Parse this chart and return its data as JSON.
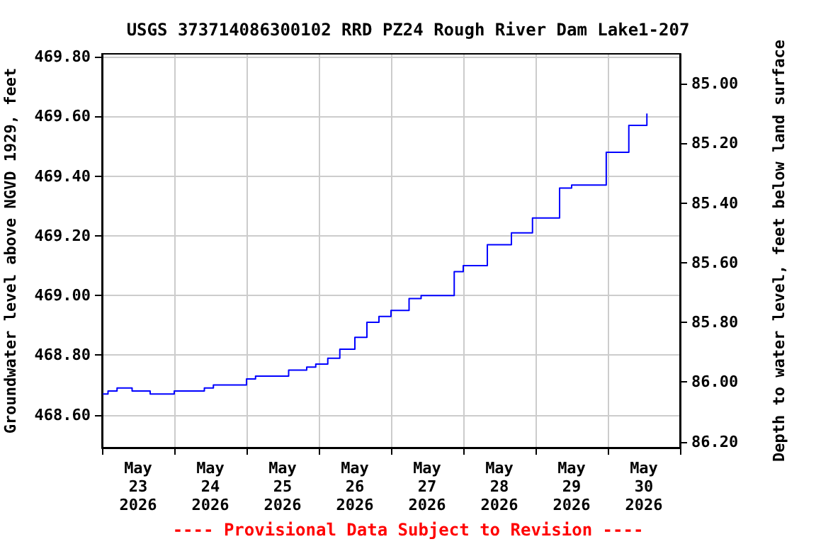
{
  "chart_data": {
    "type": "step",
    "title": "USGS 373714086300102 RRD PZ24 Rough River Dam Lake1-207",
    "ylabel": "Groundwater level above NGVD 1929, feet",
    "y2label": "Depth to water level, feet below land surface",
    "annotations": [
      "---- Provisional Data Subject to Revision ----"
    ],
    "x": [
      "2026-05-23T00:00",
      "2026-05-23T02:00",
      "2026-05-23T05:00",
      "2026-05-23T10:00",
      "2026-05-23T16:00",
      "2026-05-24T00:00",
      "2026-05-24T10:00",
      "2026-05-24T13:00",
      "2026-05-25T00:00",
      "2026-05-25T03:00",
      "2026-05-25T14:00",
      "2026-05-25T20:00",
      "2026-05-25T23:00",
      "2026-05-26T03:00",
      "2026-05-26T07:00",
      "2026-05-26T12:00",
      "2026-05-26T16:00",
      "2026-05-26T20:00",
      "2026-05-27T00:00",
      "2026-05-27T06:00",
      "2026-05-27T10:00",
      "2026-05-27T21:00",
      "2026-05-28T00:00",
      "2026-05-28T08:00",
      "2026-05-28T16:00",
      "2026-05-28T23:00",
      "2026-05-29T08:00",
      "2026-05-29T12:00",
      "2026-05-29T23:30",
      "2026-05-30T07:00",
      "2026-05-30T13:00"
    ],
    "series": [
      {
        "color": "#0000ff",
        "values": [
          468.67,
          468.68,
          468.69,
          468.68,
          468.67,
          468.68,
          468.69,
          468.7,
          468.72,
          468.73,
          468.75,
          468.76,
          468.77,
          468.79,
          468.82,
          468.86,
          468.91,
          468.93,
          468.95,
          468.99,
          469.0,
          469.08,
          469.1,
          469.17,
          469.21,
          469.26,
          469.36,
          469.37,
          469.48,
          469.57,
          469.61
        ]
      }
    ],
    "xlim": [
      "2026-05-23T00:00",
      "2026-05-31T00:00"
    ],
    "xticks": [
      {
        "value": "2026-05-23T00:00",
        "label": null
      },
      {
        "value": "2026-05-23T12:00",
        "label": "May\n23\n2026"
      },
      {
        "value": "2026-05-24T00:00",
        "label": null
      },
      {
        "value": "2026-05-24T12:00",
        "label": "May\n24\n2026"
      },
      {
        "value": "2026-05-25T00:00",
        "label": null
      },
      {
        "value": "2026-05-25T12:00",
        "label": "May\n25\n2026"
      },
      {
        "value": "2026-05-26T00:00",
        "label": null
      },
      {
        "value": "2026-05-26T12:00",
        "label": "May\n26\n2026"
      },
      {
        "value": "2026-05-27T00:00",
        "label": null
      },
      {
        "value": "2026-05-27T12:00",
        "label": "May\n27\n2026"
      },
      {
        "value": "2026-05-28T00:00",
        "label": null
      },
      {
        "value": "2026-05-28T12:00",
        "label": "May\n28\n2026"
      },
      {
        "value": "2026-05-29T00:00",
        "label": null
      },
      {
        "value": "2026-05-29T12:00",
        "label": "May\n29\n2026"
      },
      {
        "value": "2026-05-30T00:00",
        "label": null
      },
      {
        "value": "2026-05-30T12:00",
        "label": "May\n30\n2026"
      },
      {
        "value": "2026-05-31T00:00",
        "label": null
      }
    ],
    "ylim": [
      468.49,
      469.81
    ],
    "yticks": [
      {
        "value": 468.6,
        "label": "468.60"
      },
      {
        "value": 468.8,
        "label": "468.80"
      },
      {
        "value": 469.0,
        "label": "469.00"
      },
      {
        "value": 469.2,
        "label": "469.20"
      },
      {
        "value": 469.4,
        "label": "469.40"
      },
      {
        "value": 469.6,
        "label": "469.60"
      },
      {
        "value": 469.8,
        "label": "469.80"
      }
    ],
    "y2lim": [
      86.22,
      84.9
    ],
    "y2ticks": [
      {
        "value": 85.0,
        "label": "85.00"
      },
      {
        "value": 85.2,
        "label": "85.20"
      },
      {
        "value": 85.4,
        "label": "85.40"
      },
      {
        "value": 85.6,
        "label": "85.60"
      },
      {
        "value": 85.8,
        "label": "85.80"
      },
      {
        "value": 86.0,
        "label": "86.00"
      },
      {
        "value": 86.2,
        "label": "86.20"
      }
    ],
    "grid": true,
    "marker": "none",
    "line_style": "solid"
  }
}
